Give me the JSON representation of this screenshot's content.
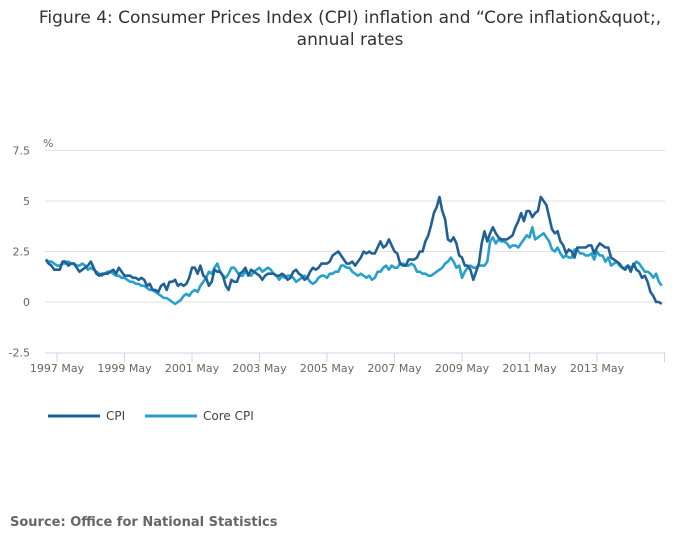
{
  "chart_data": {
    "type": "line",
    "title_lines": [
      "Figure 4: Consumer Prices Index (CPI) inflation and “Core inflation&quot;,",
      "annual rates"
    ],
    "ylabel": "%",
    "ylim": [
      -2.5,
      7.5
    ],
    "yticks": [
      "7.5",
      "5",
      "2.5",
      "0",
      "-2.5"
    ],
    "ytick_values": [
      7.5,
      5,
      2.5,
      0,
      -2.5
    ],
    "xtick_labels": [
      "1997 May",
      "1999 May",
      "2001 May",
      "2003 May",
      "2005 May",
      "2007 May",
      "2009 May",
      "2011 May",
      "2013 May",
      ""
    ],
    "x_start": "1997 Jan",
    "x_end": "2015 Apr",
    "frequency": "monthly",
    "grid": true,
    "legend_position": "bottom-left",
    "series": [
      {
        "name": "CPI",
        "color": "#206095",
        "values": [
          2.1,
          1.9,
          1.8,
          1.6,
          1.6,
          1.6,
          2.0,
          2.0,
          1.8,
          1.9,
          1.9,
          1.7,
          1.5,
          1.6,
          1.7,
          1.8,
          2.0,
          1.7,
          1.4,
          1.3,
          1.4,
          1.4,
          1.4,
          1.5,
          1.6,
          1.4,
          1.7,
          1.5,
          1.3,
          1.3,
          1.3,
          1.2,
          1.2,
          1.1,
          1.2,
          1.1,
          0.8,
          0.9,
          0.6,
          0.6,
          0.5,
          0.8,
          0.9,
          0.6,
          1.0,
          1.0,
          1.1,
          0.8,
          0.9,
          0.8,
          0.9,
          1.2,
          1.7,
          1.7,
          1.4,
          1.8,
          1.3,
          1.2,
          0.8,
          1.0,
          1.6,
          1.5,
          1.5,
          1.3,
          0.8,
          0.6,
          1.1,
          1.0,
          1.0,
          1.4,
          1.5,
          1.7,
          1.3,
          1.6,
          1.5,
          1.4,
          1.3,
          1.1,
          1.3,
          1.4,
          1.4,
          1.4,
          1.3,
          1.3,
          1.4,
          1.3,
          1.1,
          1.2,
          1.5,
          1.6,
          1.4,
          1.3,
          1.1,
          1.2,
          1.5,
          1.7,
          1.6,
          1.7,
          1.9,
          1.9,
          1.9,
          2.0,
          2.3,
          2.4,
          2.5,
          2.3,
          2.1,
          1.9,
          1.9,
          2.0,
          1.8,
          2.0,
          2.2,
          2.5,
          2.4,
          2.5,
          2.4,
          2.4,
          2.7,
          3.0,
          2.7,
          2.8,
          3.1,
          2.8,
          2.5,
          2.4,
          1.9,
          1.8,
          1.8,
          2.1,
          2.1,
          2.1,
          2.2,
          2.5,
          2.5,
          3.0,
          3.3,
          3.8,
          4.4,
          4.7,
          5.2,
          4.5,
          4.1,
          3.1,
          3.0,
          3.2,
          2.9,
          2.3,
          2.2,
          1.8,
          1.8,
          1.6,
          1.1,
          1.5,
          1.9,
          2.9,
          3.5,
          3.0,
          3.4,
          3.7,
          3.4,
          3.2,
          3.1,
          3.1,
          3.1,
          3.2,
          3.3,
          3.7,
          4.0,
          4.4,
          4.0,
          4.5,
          4.5,
          4.2,
          4.4,
          4.5,
          5.2,
          5.0,
          4.8,
          4.2,
          3.6,
          3.4,
          3.5,
          3.0,
          2.8,
          2.4,
          2.6,
          2.5,
          2.2,
          2.7,
          2.7,
          2.7,
          2.7,
          2.8,
          2.8,
          2.4,
          2.7,
          2.9,
          2.8,
          2.7,
          2.7,
          2.2,
          2.1,
          2.0,
          1.9,
          1.7,
          1.6,
          1.8,
          1.5,
          1.9,
          1.6,
          1.5,
          1.2,
          1.3,
          1.0,
          0.5,
          0.3,
          0.0,
          0.0,
          -0.1
        ]
      },
      {
        "name": "Core CPI",
        "color": "#27a0cc",
        "values": [
          2.1,
          2.0,
          2.0,
          1.9,
          1.8,
          1.8,
          1.9,
          1.9,
          2.0,
          1.9,
          1.9,
          1.8,
          1.8,
          1.9,
          1.8,
          1.6,
          1.7,
          1.6,
          1.5,
          1.4,
          1.3,
          1.4,
          1.5,
          1.5,
          1.4,
          1.3,
          1.3,
          1.2,
          1.2,
          1.1,
          1.0,
          1.0,
          0.9,
          0.9,
          0.8,
          0.8,
          0.7,
          0.6,
          0.6,
          0.5,
          0.4,
          0.3,
          0.2,
          0.2,
          0.1,
          0.0,
          -0.1,
          0.0,
          0.1,
          0.3,
          0.4,
          0.3,
          0.5,
          0.6,
          0.5,
          0.8,
          1.0,
          1.2,
          1.5,
          1.4,
          1.7,
          1.9,
          1.5,
          1.3,
          1.2,
          1.4,
          1.7,
          1.7,
          1.5,
          1.3,
          1.3,
          1.5,
          1.4,
          1.3,
          1.5,
          1.6,
          1.7,
          1.5,
          1.6,
          1.7,
          1.6,
          1.4,
          1.3,
          1.1,
          1.3,
          1.2,
          1.3,
          1.3,
          1.2,
          1.0,
          1.1,
          1.2,
          1.3,
          1.2,
          1.0,
          0.9,
          1.0,
          1.2,
          1.3,
          1.3,
          1.2,
          1.4,
          1.4,
          1.5,
          1.5,
          1.8,
          1.8,
          1.7,
          1.7,
          1.5,
          1.4,
          1.3,
          1.4,
          1.3,
          1.2,
          1.3,
          1.1,
          1.2,
          1.5,
          1.5,
          1.7,
          1.8,
          1.6,
          1.8,
          1.7,
          1.7,
          1.9,
          1.9,
          1.8,
          1.8,
          1.9,
          1.8,
          1.5,
          1.5,
          1.4,
          1.4,
          1.3,
          1.3,
          1.4,
          1.5,
          1.6,
          1.7,
          1.9,
          2.0,
          2.2,
          2.0,
          1.7,
          1.8,
          1.2,
          1.5,
          1.7,
          1.8,
          1.7,
          1.7,
          1.8,
          1.8,
          1.8,
          2.0,
          3.0,
          3.2,
          2.9,
          3.1,
          3.0,
          3.0,
          2.9,
          2.7,
          2.8,
          2.8,
          2.7,
          2.9,
          3.1,
          3.3,
          3.2,
          3.7,
          3.1,
          3.2,
          3.3,
          3.4,
          3.2,
          3.0,
          2.6,
          2.5,
          2.7,
          2.4,
          2.2,
          2.3,
          2.2,
          2.2,
          2.6,
          2.6,
          2.4,
          2.4,
          2.3,
          2.3,
          2.4,
          2.1,
          2.5,
          2.3,
          2.3,
          2.0,
          2.2,
          1.8,
          1.9,
          2.0,
          1.8,
          1.7,
          1.7,
          1.8,
          1.7,
          1.8,
          2.0,
          1.9,
          1.7,
          1.5,
          1.5,
          1.4,
          1.2,
          1.4,
          1.0,
          0.8
        ]
      }
    ]
  },
  "source": "Source: Office for National Statistics"
}
